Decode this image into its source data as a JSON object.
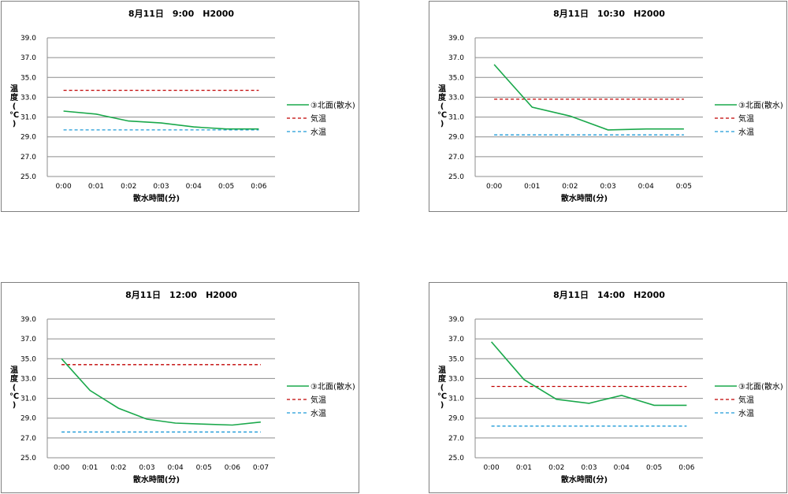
{
  "chart_data": [
    {
      "type": "line",
      "title": "8月11日　9:00　H2000",
      "xlabel": "散水時間(分)",
      "ylabel_chars": [
        "温",
        "度",
        "(",
        "℃",
        ")"
      ],
      "ylim": [
        25.0,
        39.0
      ],
      "yticks": [
        "25.0",
        "27.0",
        "29.0",
        "31.0",
        "33.0",
        "35.0",
        "37.0",
        "39.0"
      ],
      "categories": [
        "0:00",
        "0:01",
        "0:02",
        "0:03",
        "0:04",
        "0:05",
        "0:06"
      ],
      "grid": true,
      "legend_position": "right",
      "series": [
        {
          "name": "③北面(散水)",
          "style": "solid",
          "color": "#1aa84b",
          "values": [
            31.6,
            31.3,
            30.6,
            30.4,
            30.0,
            29.8,
            29.8
          ]
        },
        {
          "name": "気温",
          "style": "dashed",
          "color": "#c00000",
          "values": [
            33.7,
            33.7,
            33.7,
            33.7,
            33.7,
            33.7,
            33.7
          ]
        },
        {
          "name": "水温",
          "style": "dashed",
          "color": "#1f9bd7",
          "values": [
            29.7,
            29.7,
            29.7,
            29.7,
            29.7,
            29.7,
            29.7
          ]
        }
      ]
    },
    {
      "type": "line",
      "title": "8月11日　10:30　H2000",
      "xlabel": "散水時間(分)",
      "ylabel_chars": [
        "温",
        "度",
        "(",
        "℃",
        ")"
      ],
      "ylim": [
        25.0,
        39.0
      ],
      "yticks": [
        "25.0",
        "27.0",
        "29.0",
        "31.0",
        "33.0",
        "35.0",
        "37.0",
        "39.0"
      ],
      "categories": [
        "0:00",
        "0:01",
        "0:02",
        "0:03",
        "0:04",
        "0:05"
      ],
      "grid": true,
      "legend_position": "right",
      "series": [
        {
          "name": "③北面(散水)",
          "style": "solid",
          "color": "#1aa84b",
          "values": [
            36.3,
            32.0,
            31.1,
            29.7,
            29.8,
            29.8
          ]
        },
        {
          "name": "気温",
          "style": "dashed",
          "color": "#c00000",
          "values": [
            32.8,
            32.8,
            32.8,
            32.8,
            32.8,
            32.8
          ]
        },
        {
          "name": "水温",
          "style": "dashed",
          "color": "#1f9bd7",
          "values": [
            29.2,
            29.2,
            29.2,
            29.2,
            29.2,
            29.2
          ]
        }
      ]
    },
    {
      "type": "line",
      "title": "8月11日　12:00　H2000",
      "xlabel": "散水時間(分)",
      "ylabel_chars": [
        "温",
        "度",
        "(",
        "℃",
        ")"
      ],
      "ylim": [
        25.0,
        39.0
      ],
      "yticks": [
        "25.0",
        "27.0",
        "29.0",
        "31.0",
        "33.0",
        "35.0",
        "37.0",
        "39.0"
      ],
      "categories": [
        "0:00",
        "0:01",
        "0:02",
        "0:03",
        "0:04",
        "0:05",
        "0:06",
        "0:07"
      ],
      "grid": true,
      "legend_position": "right",
      "series": [
        {
          "name": "③北面(散水)",
          "style": "solid",
          "color": "#1aa84b",
          "values": [
            35.0,
            31.8,
            30.0,
            28.9,
            28.5,
            28.4,
            28.3,
            28.6
          ]
        },
        {
          "name": "気温",
          "style": "dashed",
          "color": "#c00000",
          "values": [
            34.4,
            34.4,
            34.4,
            34.4,
            34.4,
            34.4,
            34.4,
            34.4
          ]
        },
        {
          "name": "水温",
          "style": "dashed",
          "color": "#1f9bd7",
          "values": [
            27.6,
            27.6,
            27.6,
            27.6,
            27.6,
            27.6,
            27.6,
            27.6
          ]
        }
      ]
    },
    {
      "type": "line",
      "title": "8月11日　14:00　H2000",
      "xlabel": "散水時間(分)",
      "ylabel_chars": [
        "温",
        "度",
        "(",
        "℃",
        ")"
      ],
      "ylim": [
        25.0,
        39.0
      ],
      "yticks": [
        "25.0",
        "27.0",
        "29.0",
        "31.0",
        "33.0",
        "35.0",
        "37.0",
        "39.0"
      ],
      "categories": [
        "0:00",
        "0:01",
        "0:02",
        "0:03",
        "0:04",
        "0:05",
        "0:06"
      ],
      "grid": true,
      "legend_position": "right",
      "series": [
        {
          "name": "③北面(散水)",
          "style": "solid",
          "color": "#1aa84b",
          "values": [
            36.7,
            32.9,
            30.9,
            30.5,
            31.3,
            30.3,
            30.3
          ]
        },
        {
          "name": "気温",
          "style": "dashed",
          "color": "#c00000",
          "values": [
            32.2,
            32.2,
            32.2,
            32.2,
            32.2,
            32.2,
            32.2
          ]
        },
        {
          "name": "水温",
          "style": "dashed",
          "color": "#1f9bd7",
          "values": [
            28.2,
            28.2,
            28.2,
            28.2,
            28.2,
            28.2,
            28.2
          ]
        }
      ]
    }
  ]
}
